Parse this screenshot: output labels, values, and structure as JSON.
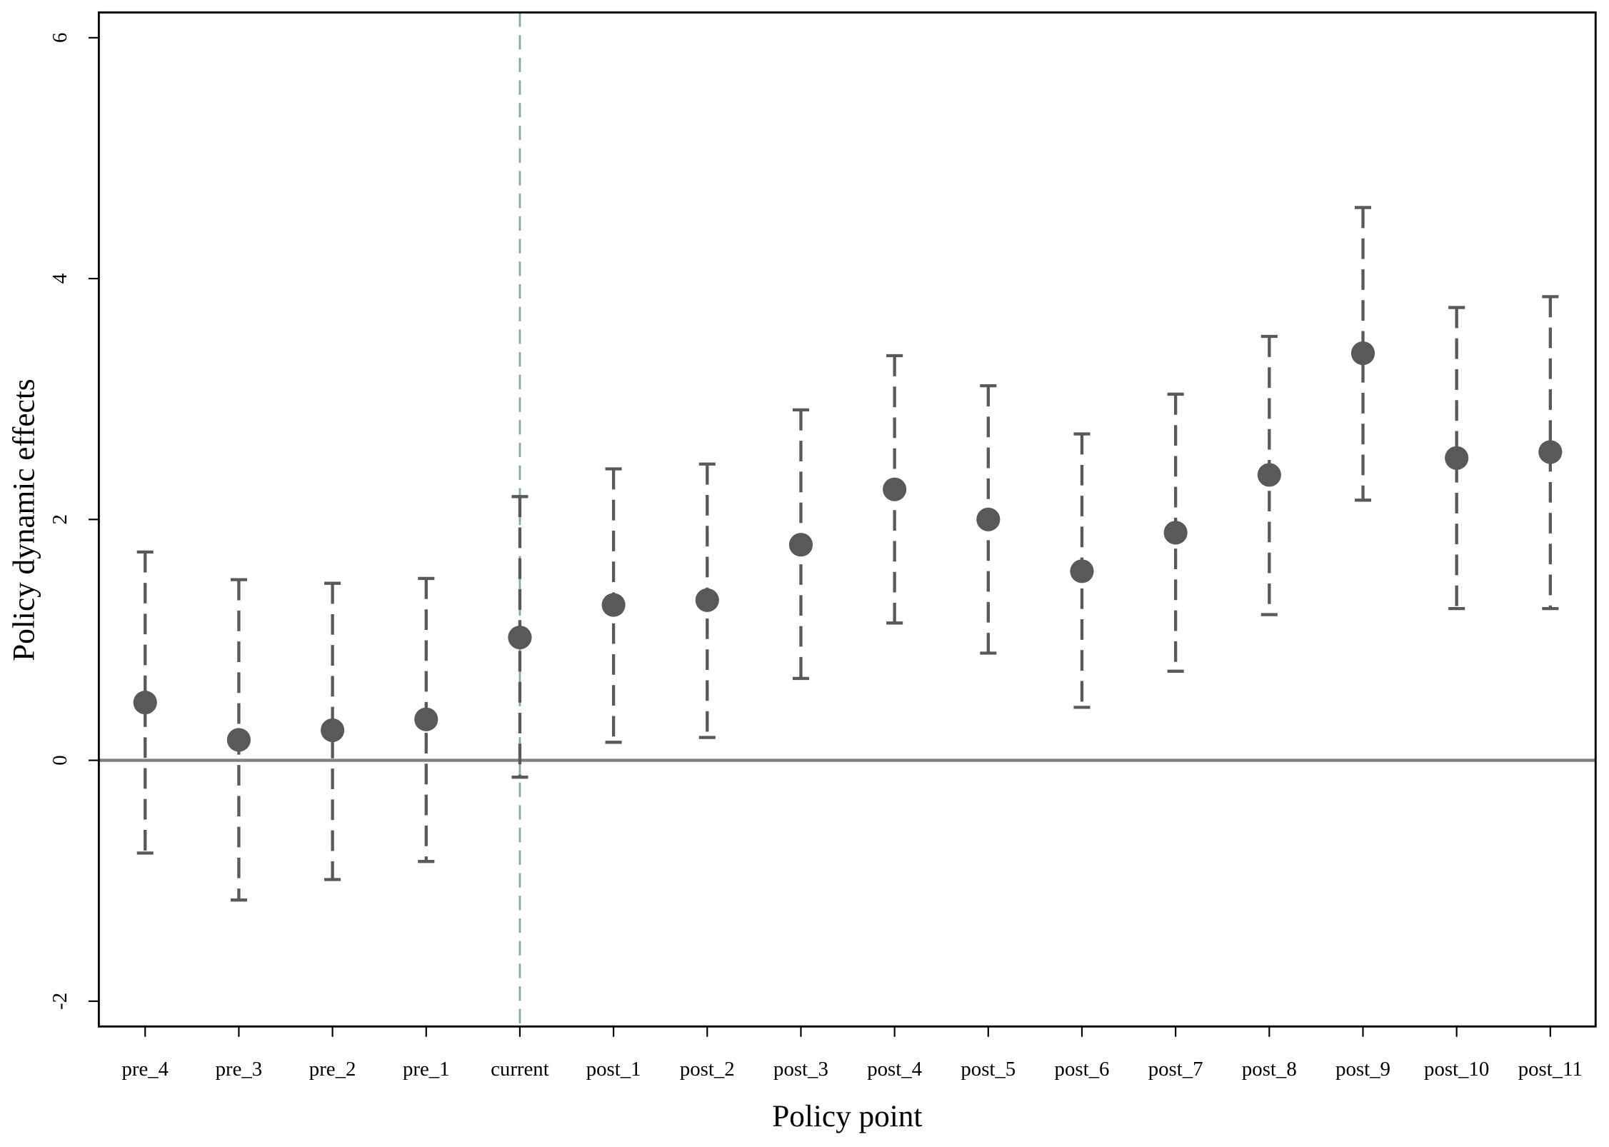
{
  "chart_data": {
    "type": "errorbar",
    "x_label": "Policy point",
    "y_label": "Policy dynamic effects",
    "categories": [
      "pre_4",
      "pre_3",
      "pre_2",
      "pre_1",
      "current",
      "post_1",
      "post_2",
      "post_3",
      "post_4",
      "post_5",
      "post_6",
      "post_7",
      "post_8",
      "post_9",
      "post_10",
      "post_11"
    ],
    "values": [
      0.48,
      0.17,
      0.25,
      0.34,
      1.02,
      1.29,
      1.33,
      1.79,
      2.25,
      2.0,
      1.57,
      1.89,
      2.37,
      3.38,
      2.51,
      2.56
    ],
    "lower": [
      -0.77,
      -1.16,
      -0.99,
      -0.84,
      -0.14,
      0.15,
      0.19,
      0.68,
      1.14,
      0.89,
      0.44,
      0.74,
      1.21,
      2.16,
      1.26,
      1.26
    ],
    "upper": [
      1.73,
      1.5,
      1.47,
      1.51,
      2.19,
      2.42,
      2.46,
      2.91,
      3.36,
      3.11,
      2.71,
      3.04,
      3.52,
      4.59,
      3.76,
      3.85
    ],
    "color": "#595959",
    "ylim": [
      -2.21,
      6.21
    ],
    "yticks": [
      -2,
      0,
      2,
      4,
      6
    ],
    "hline": 0,
    "vline": "current"
  }
}
